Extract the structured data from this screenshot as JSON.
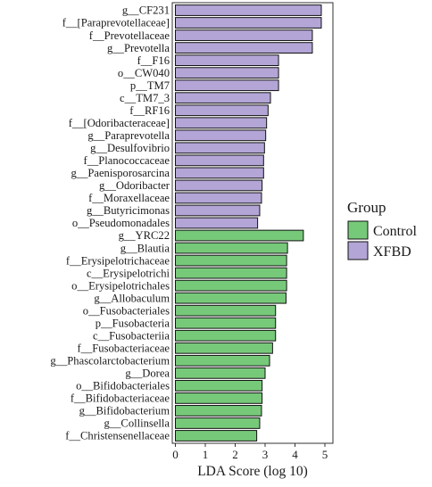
{
  "chart_data": {
    "type": "bar",
    "orientation": "horizontal",
    "xlabel": "LDA Score (log 10)",
    "xlim": [
      0,
      5
    ],
    "xticks": [
      0,
      1,
      2,
      3,
      4,
      5
    ],
    "grid": false,
    "legend": {
      "title": "Group",
      "placement": "right",
      "entries": [
        {
          "name": "Control",
          "color": "#77c97a"
        },
        {
          "name": "XFBD",
          "color": "#b3a5d6"
        }
      ]
    },
    "bars": [
      {
        "label": "g__CF231",
        "value": 4.88,
        "group": "XFBD"
      },
      {
        "label": "f__[Paraprevotellaceae]",
        "value": 4.88,
        "group": "XFBD"
      },
      {
        "label": "f__Prevotellaceae",
        "value": 4.58,
        "group": "XFBD"
      },
      {
        "label": "g__Prevotella",
        "value": 4.58,
        "group": "XFBD"
      },
      {
        "label": "f__F16",
        "value": 3.45,
        "group": "XFBD"
      },
      {
        "label": "o__CW040",
        "value": 3.45,
        "group": "XFBD"
      },
      {
        "label": "p__TM7",
        "value": 3.45,
        "group": "XFBD"
      },
      {
        "label": "c__TM7_3",
        "value": 3.18,
        "group": "XFBD"
      },
      {
        "label": "f__RF16",
        "value": 3.1,
        "group": "XFBD"
      },
      {
        "label": "f__[Odoribacteraceae]",
        "value": 3.05,
        "group": "XFBD"
      },
      {
        "label": "g__Paraprevotella",
        "value": 3.02,
        "group": "XFBD"
      },
      {
        "label": "g__Desulfovibrio",
        "value": 2.98,
        "group": "XFBD"
      },
      {
        "label": "f__Planococcaceae",
        "value": 2.95,
        "group": "XFBD"
      },
      {
        "label": "g__Paenisporosarcina",
        "value": 2.95,
        "group": "XFBD"
      },
      {
        "label": "g__Odoribacter",
        "value": 2.9,
        "group": "XFBD"
      },
      {
        "label": "f__Moraxellaceae",
        "value": 2.88,
        "group": "XFBD"
      },
      {
        "label": "g__Butyricimonas",
        "value": 2.82,
        "group": "XFBD"
      },
      {
        "label": "o__Pseudomonadales",
        "value": 2.75,
        "group": "XFBD"
      },
      {
        "label": "g__YRC22",
        "value": 4.28,
        "group": "Control"
      },
      {
        "label": "g__Blautia",
        "value": 3.75,
        "group": "Control"
      },
      {
        "label": "f__Erysipelotrichaceae",
        "value": 3.72,
        "group": "Control"
      },
      {
        "label": "c__Erysipelotrichi",
        "value": 3.72,
        "group": "Control"
      },
      {
        "label": "o__Erysipelotrichales",
        "value": 3.72,
        "group": "Control"
      },
      {
        "label": "g__Allobaculum",
        "value": 3.7,
        "group": "Control"
      },
      {
        "label": "o__Fusobacteriales",
        "value": 3.35,
        "group": "Control"
      },
      {
        "label": "p__Fusobacteria",
        "value": 3.35,
        "group": "Control"
      },
      {
        "label": "c__Fusobacteriia",
        "value": 3.35,
        "group": "Control"
      },
      {
        "label": "f__Fusobacteriaceae",
        "value": 3.25,
        "group": "Control"
      },
      {
        "label": "g__Phascolarctobacterium",
        "value": 3.15,
        "group": "Control"
      },
      {
        "label": "g__Dorea",
        "value": 3.0,
        "group": "Control"
      },
      {
        "label": "o__Bifidobacteriales",
        "value": 2.9,
        "group": "Control"
      },
      {
        "label": "f__Bifidobacteriaceae",
        "value": 2.9,
        "group": "Control"
      },
      {
        "label": "g__Bifidobacterium",
        "value": 2.88,
        "group": "Control"
      },
      {
        "label": "g__Collinsella",
        "value": 2.82,
        "group": "Control"
      },
      {
        "label": "f__Christensenellaceae",
        "value": 2.72,
        "group": "Control"
      }
    ]
  }
}
